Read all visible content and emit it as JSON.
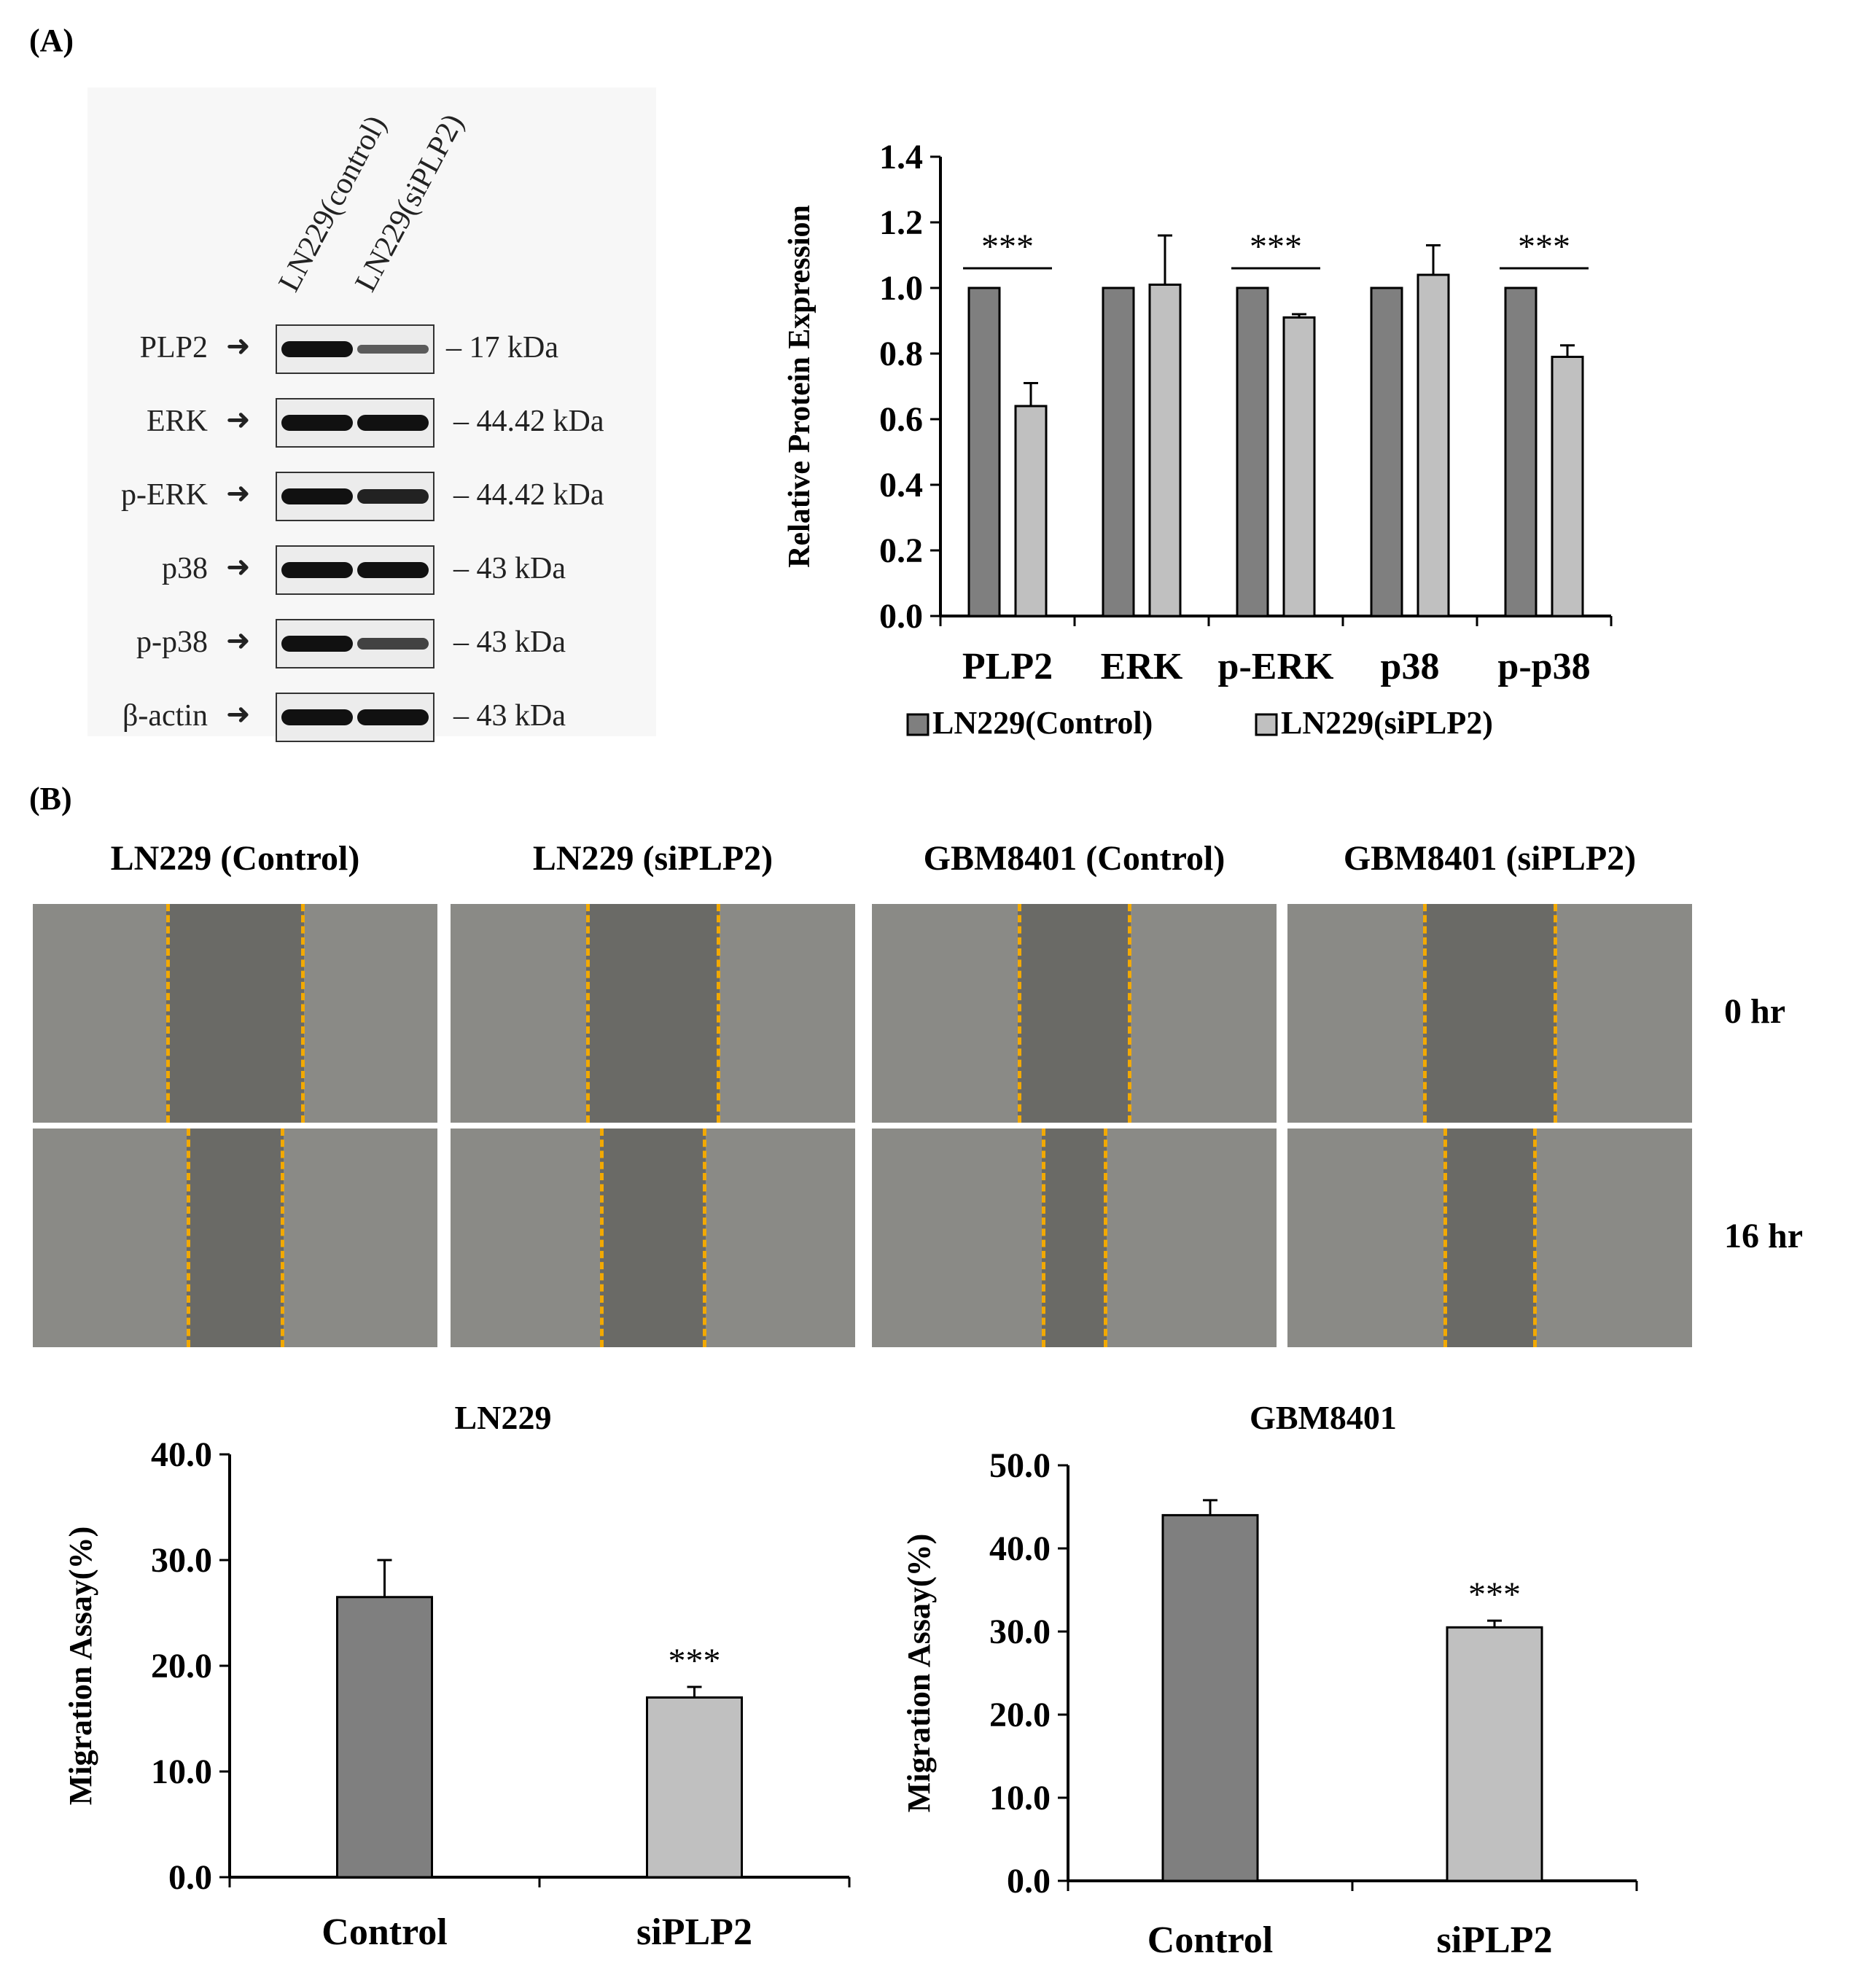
{
  "panel_a_label": "(A)",
  "panel_b_label": "(B)",
  "western_blot": {
    "lanes": [
      "LN229(control)",
      "LN229(siPLP2)"
    ],
    "rows": [
      {
        "protein": "PLP2",
        "kda": "17 kDa",
        "band_intensity": [
          1.0,
          0.55
        ]
      },
      {
        "protein": "ERK",
        "kda": "44.42 kDa",
        "band_intensity": [
          1.0,
          1.0
        ]
      },
      {
        "protein": "p-ERK",
        "kda": "44.42 kDa",
        "band_intensity": [
          1.0,
          0.9
        ]
      },
      {
        "protein": "p38",
        "kda": "43 kDa",
        "band_intensity": [
          1.0,
          1.0
        ]
      },
      {
        "protein": "p-p38",
        "kda": "43 kDa",
        "band_intensity": [
          1.0,
          0.7
        ]
      },
      {
        "protein": "β-actin",
        "kda": "43 kDa",
        "band_intensity": [
          1.0,
          1.0
        ]
      }
    ]
  },
  "scratch_assay": {
    "conditions": [
      "LN229 (Control)",
      "LN229 (siPLP2)",
      "GBM8401 (Control)",
      "GBM8401 (siPLP2)"
    ],
    "times": [
      "0 hr",
      "16 hr"
    ],
    "gap_fraction": [
      [
        0.34,
        0.33,
        0.28,
        0.33
      ],
      [
        0.24,
        0.26,
        0.16,
        0.23
      ]
    ]
  },
  "colors": {
    "control": "#7f7f7f",
    "sipl": "#c0c0c0",
    "gap_line": "#f2a900"
  },
  "chart_data": [
    {
      "type": "bar",
      "categories": [
        "PLP2",
        "ERK",
        "p-ERK",
        "p38",
        "p-p38"
      ],
      "series": [
        {
          "name": "LN229(Control)",
          "values": [
            1.0,
            1.0,
            1.0,
            1.0,
            1.0
          ],
          "errors": [
            0,
            0,
            0,
            0,
            0
          ]
        },
        {
          "name": "LN229(siPLP2)",
          "values": [
            0.64,
            1.01,
            0.91,
            1.04,
            0.79
          ],
          "errors": [
            0.07,
            0.15,
            0.01,
            0.09,
            0.035
          ]
        }
      ],
      "ylabel": "Relative Protein Expression",
      "ylim": [
        0,
        1.4
      ],
      "yticks": [
        "0.0",
        "0.2",
        "0.4",
        "0.6",
        "0.8",
        "1.0",
        "1.2",
        "1.4"
      ],
      "significance": [
        "***",
        "",
        "***",
        "",
        "***"
      ],
      "legend": "bottom"
    },
    {
      "type": "bar",
      "title": "LN229",
      "categories": [
        "Control",
        "siPLP2"
      ],
      "values": [
        26.5,
        17.0
      ],
      "errors": [
        3.5,
        1.0
      ],
      "ylabel": "Migration Assay(%)",
      "ylim": [
        0,
        40
      ],
      "yticks": [
        "0.0",
        "10.0",
        "20.0",
        "30.0",
        "40.0"
      ],
      "significance": [
        "",
        "***"
      ]
    },
    {
      "type": "bar",
      "title": "GBM8401",
      "categories": [
        "Control",
        "siPLP2"
      ],
      "values": [
        44.0,
        30.5
      ],
      "errors": [
        1.8,
        0.8
      ],
      "ylabel": "Migration Assay(%)",
      "ylim": [
        0,
        50
      ],
      "yticks": [
        "0.0",
        "10.0",
        "20.0",
        "30.0",
        "40.0",
        "50.0"
      ],
      "significance": [
        "",
        "***"
      ]
    }
  ]
}
